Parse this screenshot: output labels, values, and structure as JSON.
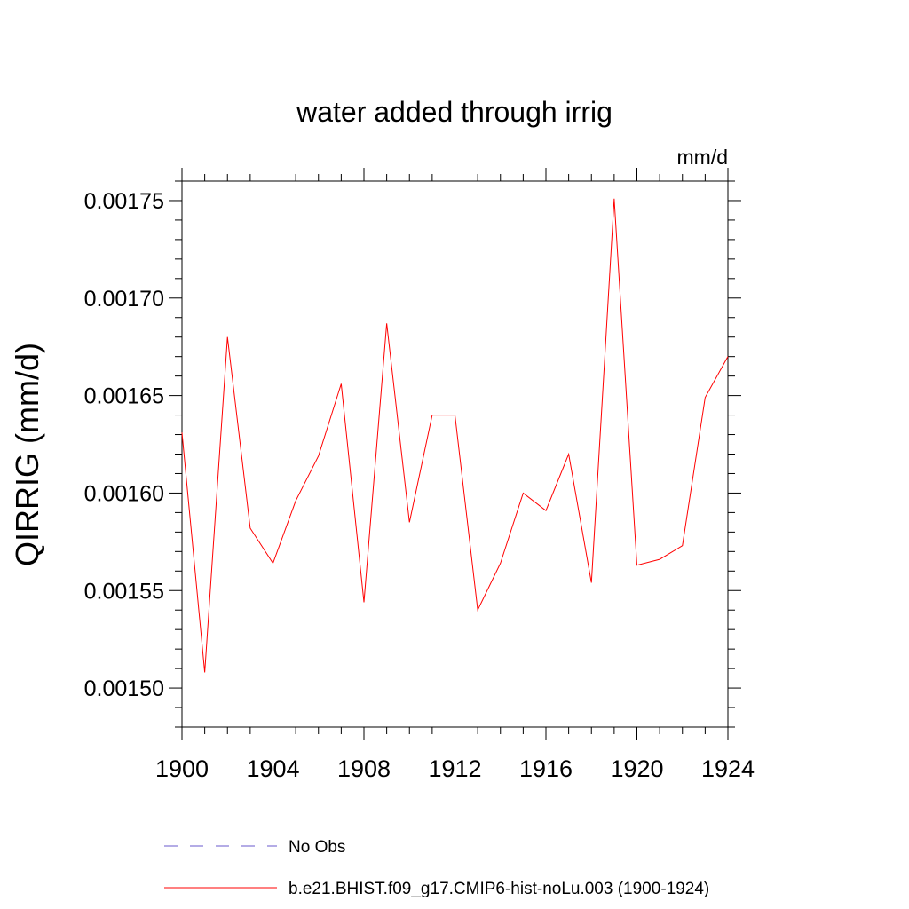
{
  "chart_data": {
    "type": "line",
    "title": "water added through irrig",
    "units_label": "mm/d",
    "ylabel": "QIRRIG  (mm/d)",
    "xlabel": "",
    "xlim": [
      1900,
      1924
    ],
    "ylim": [
      0.00148,
      0.00176
    ],
    "x_major_ticks": [
      1900,
      1904,
      1908,
      1912,
      1916,
      1920,
      1924
    ],
    "x_tick_labels": [
      "1900",
      "1904",
      "1908",
      "1912",
      "1916",
      "1920",
      "1924"
    ],
    "y_major_ticks": [
      0.0015,
      0.00155,
      0.0016,
      0.00165,
      0.0017,
      0.00175
    ],
    "y_tick_labels": [
      "0.00150",
      "0.00155",
      "0.00160",
      "0.00165",
      "0.00170",
      "0.00175"
    ],
    "grid": false,
    "legend_position": "bottom",
    "series": [
      {
        "name": "No Obs",
        "color": "#6a5acd",
        "style": "dashed",
        "x": [],
        "y": []
      },
      {
        "name": "b.e21.BHIST.f09_g17.CMIP6-hist-noLu.003 (1900-1924)",
        "color": "#ff0000",
        "style": "solid",
        "x": [
          1900,
          1901,
          1902,
          1903,
          1904,
          1905,
          1906,
          1907,
          1908,
          1909,
          1910,
          1911,
          1912,
          1913,
          1914,
          1915,
          1916,
          1917,
          1918,
          1919,
          1920,
          1921,
          1922,
          1923,
          1924
        ],
        "y": [
          0.001631,
          0.001508,
          0.00168,
          0.001582,
          0.001564,
          0.001596,
          0.001619,
          0.001656,
          0.001544,
          0.001687,
          0.001585,
          0.00164,
          0.00164,
          0.00154,
          0.001564,
          0.0016,
          0.001591,
          0.00162,
          0.001554,
          0.001751,
          0.001563,
          0.001566,
          0.001573,
          0.001649,
          0.00167
        ]
      }
    ]
  }
}
